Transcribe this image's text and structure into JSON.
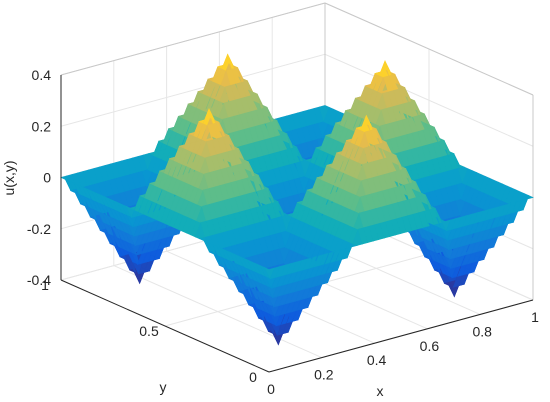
{
  "chart_data": {
    "type": "surface3d",
    "zlabel": "u(x,y)",
    "xlabel": "x",
    "ylabel": "y",
    "xlim": [
      0,
      1
    ],
    "ylim": [
      0,
      1
    ],
    "zlim": [
      -0.4,
      0.4
    ],
    "x_ticks": [
      "0",
      "0.2",
      "0.4",
      "0.6",
      "0.8",
      "1"
    ],
    "y_ticks": [
      "0",
      "0.5",
      "1"
    ],
    "z_ticks": [
      "-0.4",
      "-0.2",
      "0",
      "0.2",
      "0.4"
    ],
    "grid": true,
    "colormap": "parula",
    "surface": {
      "description_formula": "pyramid pattern: u = 0.4 * tri(3x) * tri(3y), alternating sign; tri is a unit-height triangle wave",
      "peaks": [
        {
          "x": 0.1667,
          "y": 0.1667,
          "z": -0.4
        },
        {
          "x": 0.5,
          "y": 0.1667,
          "z": 0.4
        },
        {
          "x": 0.8333,
          "y": 0.1667,
          "z": -0.4
        },
        {
          "x": 0.1667,
          "y": 0.5,
          "z": 0.4
        },
        {
          "x": 0.5,
          "y": 0.5,
          "z": -0.4
        },
        {
          "x": 0.8333,
          "y": 0.5,
          "z": 0.4
        },
        {
          "x": 0.1667,
          "y": 0.8333,
          "z": -0.4
        },
        {
          "x": 0.5,
          "y": 0.8333,
          "z": 0.4
        },
        {
          "x": 0.8333,
          "y": 0.8333,
          "z": -0.4
        }
      ]
    },
    "colors": {
      "axis": "#262626",
      "grid": "#e6e6e6",
      "box": "#c8c8c8"
    }
  }
}
